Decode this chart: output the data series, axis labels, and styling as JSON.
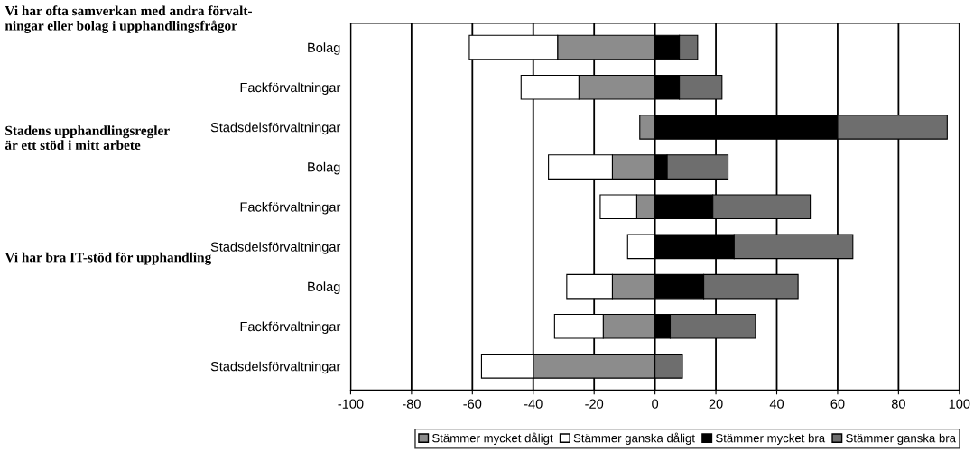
{
  "chart_data": {
    "type": "bar",
    "orientation": "horizontal",
    "stacked": true,
    "categories": [
      "Bolag",
      "Fackförvaltningar",
      "Stadsdelsförvaltningar",
      "Bolag",
      "Fackförvaltningar",
      "Stadsdelsförvaltningar",
      "Bolag",
      "Fackförvaltningar",
      "Stadsdelsförvaltningar"
    ],
    "series": [
      {
        "name": "Stämmer mycket dåligt",
        "color": "#8c8c8c",
        "values": [
          -32,
          -25,
          -5,
          -14,
          -6,
          0,
          -14,
          -17,
          -40
        ]
      },
      {
        "name": "Stämmer ganska dåligt",
        "color": "#ffffff",
        "values": [
          -29,
          -19,
          0,
          -21,
          -12,
          -9,
          -15,
          -16,
          -17
        ]
      },
      {
        "name": "Stämmer mycket bra",
        "color": "#000000",
        "values": [
          8,
          8,
          60,
          4,
          19,
          26,
          16,
          5,
          0
        ]
      },
      {
        "name": "Stämmer ganska bra",
        "color": "#6e6e6e",
        "values": [
          6,
          14,
          36,
          20,
          32,
          39,
          31,
          28,
          9
        ]
      }
    ],
    "xlim": [
      -100,
      100
    ],
    "xticks": [
      -100,
      -80,
      -60,
      -40,
      -20,
      0,
      20,
      40,
      60,
      80,
      100
    ],
    "grid": "x",
    "legend": "bottom",
    "annotations": [
      "Vi har ofta samverkan med andra förvalt-\nningar eller bolag i upphandlingsfrågor",
      "Stadens upphandlingsregler\när ett stöd i mitt arbete",
      "Vi har bra IT-stöd för upphandling"
    ]
  }
}
